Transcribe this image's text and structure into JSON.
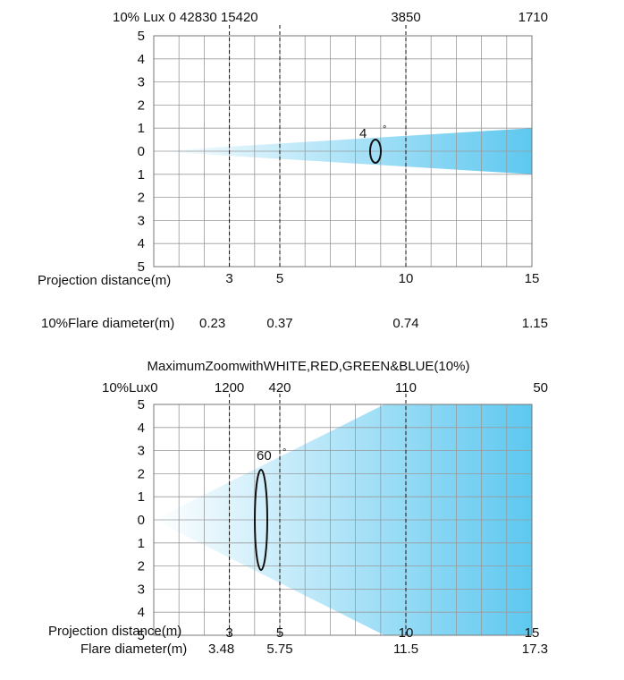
{
  "colors": {
    "beam": "#5ec8f0",
    "beam_fade": "#ffffff",
    "grid": "#9a9a9a",
    "text": "#111111"
  },
  "chart_data": [
    {
      "type": "beam_diagram",
      "title": "",
      "lux_label": "10% Lux 0 42830 15420",
      "lux_values": [
        {
          "distance": 10,
          "label": "3850"
        },
        {
          "distance": 15,
          "label": "1710"
        }
      ],
      "y_ticks": [
        "5",
        "4",
        "3",
        "2",
        "1",
        "0",
        "1",
        "2",
        "3",
        "4",
        "5"
      ],
      "ylim": [
        -5,
        5
      ],
      "xlim": [
        0,
        15
      ],
      "xlabel": "Projection distance(m)",
      "x_ticks": [
        {
          "value": 3,
          "label": "3"
        },
        {
          "value": 5,
          "label": "5"
        },
        {
          "value": 10,
          "label": "10"
        },
        {
          "value": 15,
          "label": "15"
        }
      ],
      "dashed_at": [
        3,
        5,
        10
      ],
      "beam_angle_label": "4",
      "degree_symbol": "°",
      "diameter_label": "10%Flare diameter(m)",
      "diameters": [
        {
          "distance": 3,
          "label": "0.23"
        },
        {
          "distance": 5,
          "label": "0.37"
        },
        {
          "distance": 10,
          "label": "0.74"
        },
        {
          "distance": 15,
          "label": "1.15"
        }
      ]
    },
    {
      "type": "beam_diagram",
      "title": "MaximumZoomwithWHITE,RED,GREEN&BLUE(10%)",
      "lux_label": "10%Lux0",
      "lux_values": [
        {
          "distance": 3,
          "label": "1200"
        },
        {
          "distance": 5,
          "label": "420"
        },
        {
          "distance": 10,
          "label": "110"
        },
        {
          "distance": 15,
          "label": "50"
        }
      ],
      "y_ticks": [
        "5",
        "4",
        "3",
        "2",
        "1",
        "0",
        "1",
        "2",
        "3",
        "4",
        "5"
      ],
      "ylim": [
        -5,
        5
      ],
      "xlim": [
        0,
        15
      ],
      "xlabel": "Projection distance(m)",
      "x_ticks": [
        {
          "value": 3,
          "label": "3"
        },
        {
          "value": 5,
          "label": "5"
        },
        {
          "value": 10,
          "label": "10"
        },
        {
          "value": 15,
          "label": "15"
        }
      ],
      "dashed_at": [
        3,
        5,
        10
      ],
      "beam_angle_label": "60",
      "degree_symbol": "°",
      "diameter_label": "Flare diameter(m)",
      "diameters": [
        {
          "distance": 3,
          "label": "3.48"
        },
        {
          "distance": 5,
          "label": "5.75"
        },
        {
          "distance": 10,
          "label": "11.5"
        },
        {
          "distance": 15,
          "label": "17.3"
        }
      ]
    }
  ]
}
